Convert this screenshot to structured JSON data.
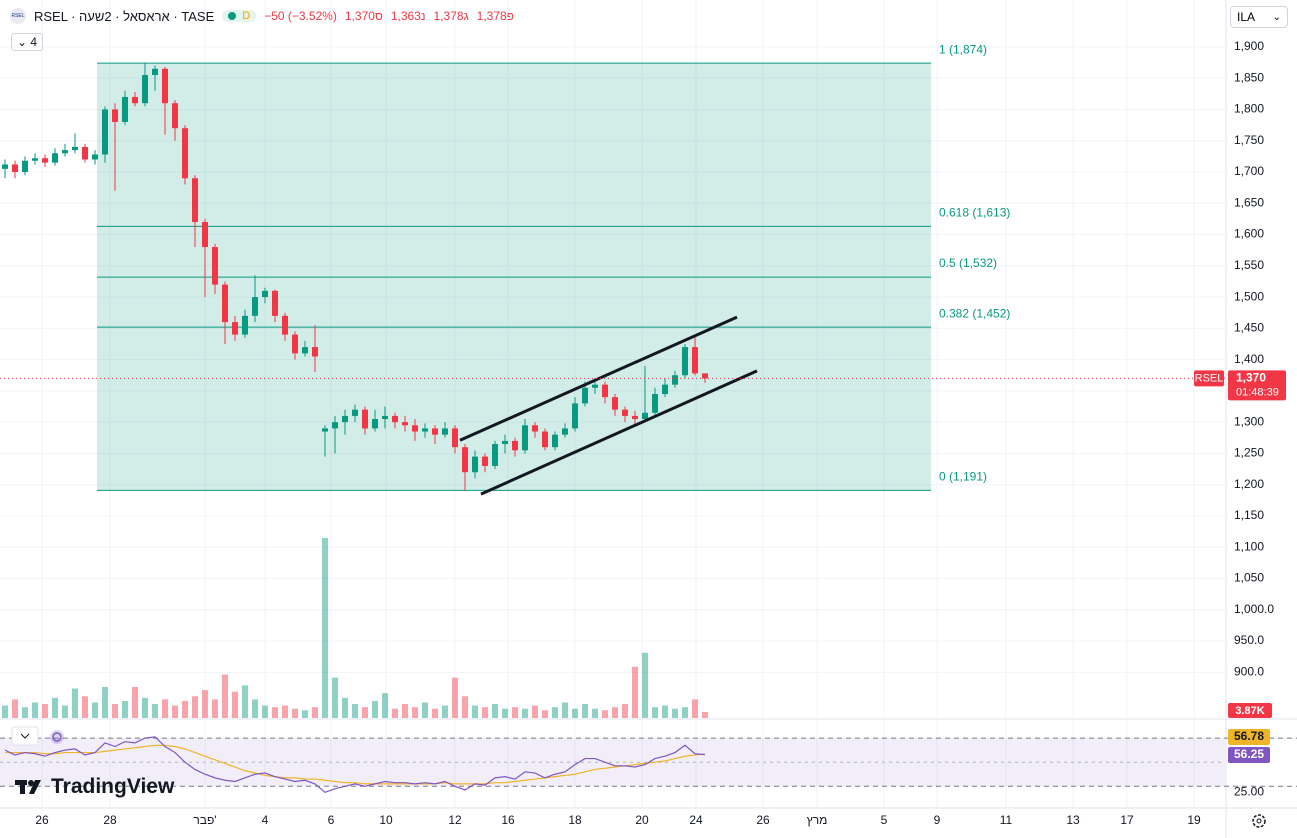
{
  "chart_data": {
    "type": "candlestick",
    "symbol": "RSEL",
    "header": {
      "title": "RSEL · אראסאל · 2שעה · TASE",
      "badge": "D",
      "change": "−50 (−3.52%)",
      "ohlc": [
        "1,370ס",
        "1,363נ",
        "1,378ג",
        "1,378פ"
      ],
      "count": "4",
      "currency": "ILA"
    },
    "brand": "TradingView",
    "up_color": "#089981",
    "down_color": "#f23645",
    "x": [
      0,
      1,
      2,
      3,
      4,
      5,
      6,
      7,
      8,
      9,
      10,
      11,
      12,
      13,
      14,
      15,
      16,
      17,
      18,
      19,
      20,
      21,
      22,
      23,
      24,
      25,
      26,
      27,
      28,
      29,
      30,
      31,
      32,
      33,
      34,
      35,
      36,
      37,
      38,
      39,
      40,
      41,
      42,
      43,
      44,
      45,
      46,
      47,
      48,
      49,
      50,
      51,
      52,
      53,
      54,
      55,
      56,
      57,
      58,
      59,
      60,
      61,
      62,
      63,
      64,
      65,
      66,
      67,
      68,
      69,
      70
    ],
    "open": [
      1705,
      1712,
      1700,
      1718,
      1722,
      1715,
      1730,
      1735,
      1740,
      1720,
      1728,
      1800,
      1780,
      1820,
      1810,
      1855,
      1865,
      1810,
      1770,
      1690,
      1620,
      1580,
      1520,
      1460,
      1440,
      1470,
      1500,
      1510,
      1470,
      1440,
      1410,
      1420,
      1285,
      1290,
      1300,
      1310,
      1320,
      1290,
      1305,
      1310,
      1300,
      1295,
      1285,
      1290,
      1280,
      1290,
      1260,
      1220,
      1245,
      1230,
      1265,
      1270,
      1255,
      1295,
      1285,
      1260,
      1280,
      1290,
      1330,
      1355,
      1360,
      1340,
      1320,
      1310,
      1305,
      1315,
      1345,
      1360,
      1375,
      1420,
      1378
    ],
    "high": [
      1720,
      1718,
      1725,
      1730,
      1728,
      1738,
      1745,
      1762,
      1745,
      1735,
      1805,
      1810,
      1830,
      1828,
      1875,
      1870,
      1868,
      1815,
      1775,
      1695,
      1625,
      1585,
      1525,
      1470,
      1480,
      1535,
      1515,
      1512,
      1475,
      1445,
      1430,
      1455,
      1295,
      1310,
      1320,
      1328,
      1325,
      1320,
      1325,
      1315,
      1310,
      1305,
      1298,
      1295,
      1300,
      1295,
      1265,
      1255,
      1250,
      1270,
      1280,
      1275,
      1305,
      1300,
      1290,
      1285,
      1298,
      1340,
      1365,
      1370,
      1365,
      1345,
      1325,
      1318,
      1390,
      1355,
      1370,
      1382,
      1425,
      1440,
      1378
    ],
    "low": [
      1690,
      1690,
      1695,
      1712,
      1708,
      1710,
      1725,
      1730,
      1715,
      1712,
      1715,
      1670,
      1775,
      1805,
      1805,
      1830,
      1760,
      1750,
      1680,
      1580,
      1500,
      1505,
      1425,
      1430,
      1435,
      1460,
      1490,
      1460,
      1430,
      1400,
      1405,
      1380,
      1245,
      1250,
      1280,
      1300,
      1280,
      1285,
      1290,
      1290,
      1285,
      1270,
      1275,
      1265,
      1275,
      1250,
      1190,
      1210,
      1220,
      1225,
      1250,
      1245,
      1250,
      1275,
      1255,
      1255,
      1275,
      1285,
      1325,
      1345,
      1330,
      1310,
      1300,
      1295,
      1300,
      1310,
      1340,
      1355,
      1370,
      1375,
      1363
    ],
    "close": [
      1712,
      1700,
      1718,
      1722,
      1715,
      1730,
      1735,
      1740,
      1720,
      1728,
      1800,
      1780,
      1820,
      1810,
      1855,
      1865,
      1810,
      1770,
      1690,
      1620,
      1580,
      1520,
      1460,
      1440,
      1470,
      1500,
      1510,
      1470,
      1440,
      1410,
      1420,
      1405,
      1290,
      1300,
      1310,
      1320,
      1290,
      1305,
      1310,
      1300,
      1295,
      1285,
      1290,
      1280,
      1290,
      1260,
      1220,
      1245,
      1230,
      1265,
      1270,
      1255,
      1295,
      1285,
      1260,
      1280,
      1290,
      1330,
      1355,
      1360,
      1340,
      1320,
      1310,
      1305,
      1315,
      1345,
      1360,
      1375,
      1420,
      1378,
      1370
    ],
    "last_price_label": "1,370",
    "countdown": "01:48:39",
    "xlim": [
      -0.5,
      122
    ],
    "xticks": [
      {
        "value": 3.7,
        "label": "26"
      },
      {
        "value": 10.5,
        "label": "28"
      },
      {
        "value": 20,
        "label": "פבר'"
      },
      {
        "value": 26,
        "label": "4"
      },
      {
        "value": 32.6,
        "label": "6"
      },
      {
        "value": 38.1,
        "label": "10"
      },
      {
        "value": 45,
        "label": "12"
      },
      {
        "value": 50.3,
        "label": "16"
      },
      {
        "value": 57,
        "label": "18"
      },
      {
        "value": 63.7,
        "label": "20"
      },
      {
        "value": 69.1,
        "label": "24"
      },
      {
        "value": 75.8,
        "label": "26"
      },
      {
        "value": 81.2,
        "label": "מרץ"
      },
      {
        "value": 87.9,
        "label": "5"
      },
      {
        "value": 93.2,
        "label": "9"
      },
      {
        "value": 100.1,
        "label": "11"
      },
      {
        "value": 106.8,
        "label": "13"
      },
      {
        "value": 112.2,
        "label": "17"
      },
      {
        "value": 118.9,
        "label": "19"
      }
    ],
    "ylim": [
      827,
      1975
    ],
    "yticks": [
      {
        "value": 1900,
        "label": "1,900"
      },
      {
        "value": 1850,
        "label": "1,850"
      },
      {
        "value": 1800,
        "label": "1,800"
      },
      {
        "value": 1750,
        "label": "1,750"
      },
      {
        "value": 1700,
        "label": "1,700"
      },
      {
        "value": 1650,
        "label": "1,650"
      },
      {
        "value": 1600,
        "label": "1,600"
      },
      {
        "value": 1550,
        "label": "1,550"
      },
      {
        "value": 1500,
        "label": "1,500"
      },
      {
        "value": 1450,
        "label": "1,450"
      },
      {
        "value": 1400,
        "label": "1,400"
      },
      {
        "value": 1350,
        "label": "1,350"
      },
      {
        "value": 1300,
        "label": "1,300"
      },
      {
        "value": 1250,
        "label": "1,250"
      },
      {
        "value": 1200,
        "label": "1,200"
      },
      {
        "value": 1150,
        "label": "1,150"
      },
      {
        "value": 1100,
        "label": "1,100"
      },
      {
        "value": 1050,
        "label": "1,050"
      },
      {
        "value": 1000,
        "label": "1,000.0"
      },
      {
        "value": 950,
        "label": "950.0"
      },
      {
        "value": 900,
        "label": "900.0"
      }
    ],
    "grid": true,
    "volume": {
      "values": [
        8,
        12,
        7,
        10,
        9,
        13,
        8,
        19,
        14,
        10,
        20,
        9,
        11,
        20,
        13,
        9,
        12,
        8,
        11,
        14,
        18,
        12,
        28,
        17,
        21,
        12,
        8,
        7,
        8,
        6,
        5,
        7,
        116,
        26,
        13,
        9,
        7,
        11,
        16,
        6,
        9,
        7,
        10,
        6,
        8,
        26,
        14,
        8,
        7,
        9,
        6,
        7,
        6,
        8,
        5,
        7,
        10,
        6,
        9,
        6,
        5,
        7,
        9,
        33,
        42,
        7,
        8,
        6,
        7,
        12,
        3.87
      ],
      "last_label": "3.87K"
    },
    "fib": {
      "x": [
        9.2,
        92.6
      ],
      "color": "#089981",
      "levels": [
        {
          "price": 1874,
          "label": "1 (1,874)"
        },
        {
          "price": 1613,
          "label": "0.618 (1,613)"
        },
        {
          "price": 1532,
          "label": "0.5 (1,532)"
        },
        {
          "price": 1452,
          "label": "0.382 (1,452)"
        },
        {
          "price": 1191,
          "label": "0 (1,191)"
        }
      ]
    },
    "channel": {
      "upper": {
        "x": [
          45.5,
          73.2
        ],
        "y": [
          1271,
          1468
        ]
      },
      "lower": {
        "x": [
          47.6,
          75.2
        ],
        "y": [
          1185,
          1382
        ]
      }
    },
    "rsi": {
      "ylim": [
        12,
        85
      ],
      "band": [
        30,
        70
      ],
      "yticks": [
        {
          "value": 25,
          "label": "25.00"
        }
      ],
      "series": [
        {
          "color": "#7e57c2",
          "values": [
            60,
            56,
            58,
            57,
            55,
            58,
            60,
            61,
            56,
            58,
            66,
            63,
            67,
            66,
            70,
            71,
            63,
            58,
            50,
            44,
            40,
            37,
            35,
            34,
            37,
            40,
            41,
            38,
            36,
            34,
            35,
            32,
            25,
            28,
            30,
            32,
            30,
            32,
            34,
            33,
            33,
            32,
            33,
            32,
            34,
            30,
            27,
            32,
            31,
            37,
            38,
            36,
            42,
            41,
            37,
            40,
            42,
            48,
            53,
            53,
            50,
            47,
            47,
            46,
            48,
            53,
            55,
            58,
            64,
            57,
            56.25
          ]
        },
        {
          "color": "#f0b429",
          "values": [
            58,
            58,
            58,
            58,
            57,
            57,
            58,
            58,
            58,
            58,
            59,
            60,
            61,
            62,
            63,
            64,
            64,
            63,
            61,
            58,
            55,
            52,
            49,
            46,
            43,
            41,
            39,
            38,
            37,
            37,
            36,
            36,
            35,
            34,
            33,
            33,
            32,
            32,
            32,
            32,
            32,
            32,
            32,
            32,
            33,
            32,
            32,
            32,
            32,
            33,
            33,
            34,
            35,
            36,
            37,
            38,
            39,
            40,
            42,
            44,
            45,
            46,
            47,
            48,
            49,
            50,
            51,
            53,
            55,
            56,
            56.78
          ]
        }
      ]
    }
  }
}
